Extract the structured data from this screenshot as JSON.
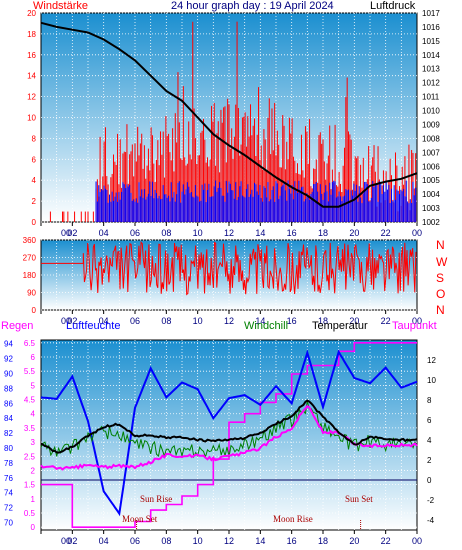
{
  "title": "24 hour graph day : 19 April 2024",
  "colors": {
    "wind": "#ff0000",
    "gust": "#0000ff",
    "pressure": "#000000",
    "direction": "#ff0000",
    "rain": "#ff00ff",
    "humidity": "#0000ff",
    "windchill": "#008000",
    "temperature": "#000000",
    "dewpoint": "#ff00ff",
    "suntrack": "#ff0000",
    "moontrack": "#ff00ff",
    "bg_top": "#1b8fd0",
    "bg_bottom": "#ffffff"
  },
  "chart_data": [
    {
      "type": "bar",
      "title": "24 hour graph day : 19 April 2024",
      "ylabel_left": "Windstärke",
      "ylabel_right": "Luftdruck",
      "ylim_left": [
        0,
        20
      ],
      "ylim_right": [
        1002,
        1017
      ],
      "yticks_left": [
        "0",
        "2",
        "4",
        "6",
        "8",
        "10",
        "12",
        "14",
        "16",
        "18",
        "20"
      ],
      "yticks_right": [
        "1002",
        "1003",
        "1004",
        "1005",
        "1006",
        "1007",
        "1008",
        "1009",
        "1010",
        "1011",
        "1012",
        "1013",
        "1014",
        "1015",
        "1016",
        "1017"
      ],
      "xticks": [
        "00",
        "02",
        "04",
        "06",
        "08",
        "10",
        "12",
        "14",
        "16",
        "18",
        "20",
        "22",
        "00"
      ],
      "series": [
        {
          "name": "Windstärke",
          "kind": "wind_avg"
        },
        {
          "name": "Windstärke",
          "kind": "wind_gust"
        },
        {
          "name": "Luftdruck",
          "kind": "pressure",
          "x": [
            0,
            1,
            2,
            3,
            4,
            5,
            6,
            7,
            8,
            9,
            10,
            11,
            12,
            13,
            14,
            15,
            16,
            17,
            18,
            19,
            20,
            21,
            22,
            23,
            24
          ],
          "values": [
            1016.3,
            1016.0,
            1015.8,
            1015.6,
            1015.1,
            1014.4,
            1013.6,
            1012.5,
            1011.4,
            1010.7,
            1009.5,
            1008.3,
            1007.5,
            1006.8,
            1006.0,
            1005.2,
            1004.5,
            1003.9,
            1003.1,
            1003.1,
            1003.6,
            1004.6,
            1004.9,
            1005.1,
            1005.5
          ]
        }
      ]
    },
    {
      "type": "scatter",
      "ylabel_right": [
        "N",
        "W",
        "S",
        "O",
        "N"
      ],
      "ylim": [
        0,
        360
      ],
      "yticks": [
        "0",
        "90",
        "180",
        "270",
        "360"
      ],
      "series": [
        {
          "name": "Windrichtung",
          "kind": "direction"
        }
      ]
    },
    {
      "type": "line",
      "legend": [
        "Regen",
        "Luftfeuchte",
        "Windchill",
        "Temperatur",
        "Taupunkt"
      ],
      "yticks_humidity": [
        "70",
        "72",
        "74",
        "76",
        "78",
        "80",
        "82",
        "84",
        "86",
        "88",
        "90",
        "92",
        "94"
      ],
      "yticks_rain": [
        "0",
        "0.5",
        "1",
        "1.5",
        "2",
        "2.5",
        "3",
        "3.5",
        "4",
        "4.5",
        "5",
        "5.5",
        "6",
        "6.5"
      ],
      "yticks_temp": [
        "-4",
        "-2",
        "0",
        "2",
        "4",
        "6",
        "8",
        "10",
        "12"
      ],
      "ylim_humidity": [
        69,
        94.5
      ],
      "ylim_rain": [
        -0.1,
        6.6
      ],
      "ylim_temp": [
        -5,
        14
      ],
      "x": [
        0,
        1,
        2,
        3,
        4,
        5,
        6,
        7,
        8,
        9,
        10,
        11,
        12,
        13,
        14,
        15,
        16,
        17,
        18,
        19,
        20,
        21,
        22,
        23,
        24
      ],
      "series": [
        {
          "name": "Temperatur",
          "values": [
            3.7,
            2.7,
            3.3,
            4.4,
            5.3,
            5.6,
            4.4,
            4.5,
            4.2,
            4.3,
            4.0,
            3.9,
            4.0,
            4.2,
            4.7,
            5.6,
            6.4,
            8.0,
            6.3,
            4.8,
            3.5,
            4.3,
            4.1,
            4.0,
            4.0
          ]
        },
        {
          "name": "Taupunkt",
          "values": [
            1.4,
            1.2,
            1.2,
            1.5,
            1.3,
            1.4,
            1.3,
            1.8,
            2.5,
            2.4,
            2.4,
            2.1,
            2.4,
            2.7,
            3.2,
            4.3,
            5.2,
            7.5,
            4.8,
            4.7,
            3.6,
            3.4,
            3.5,
            3.5,
            3.5
          ]
        },
        {
          "name": "Windchill",
          "values": [
            3.7,
            2.7,
            3.3,
            4.4,
            4.8,
            4.5,
            3.5,
            3.2,
            2.9,
            2.7,
            3.0,
            2.8,
            3.0,
            3.5,
            4.2,
            5.2,
            6.0,
            7.5,
            5.4,
            4.3,
            3.4,
            3.9,
            3.6,
            3.6,
            3.6
          ]
        },
        {
          "name": "Luftfeuchte",
          "values": [
            86.8,
            86.6,
            89.6,
            83.6,
            74.2,
            71.2,
            85.4,
            90.7,
            86.8,
            88.8,
            87.9,
            84.0,
            86.7,
            87.1,
            85.8,
            88.3,
            86.0,
            92.8,
            85.5,
            92.9,
            89.4,
            88.7,
            90.8,
            88.1,
            88.9
          ]
        },
        {
          "name": "Regen",
          "values": [
            1.5,
            1.5,
            0,
            0,
            0,
            0,
            0.2,
            0.6,
            0.8,
            1.1,
            1.5,
            2.4,
            3.7,
            4.0,
            4.4,
            4.7,
            5.4,
            5.7,
            5.7,
            6.2,
            6.5,
            6.5,
            6.5,
            6.5,
            6.5
          ]
        }
      ],
      "annotations": [
        "Sun Rise",
        "Sun Set",
        "Moon Set",
        "Moon Rise"
      ]
    }
  ]
}
